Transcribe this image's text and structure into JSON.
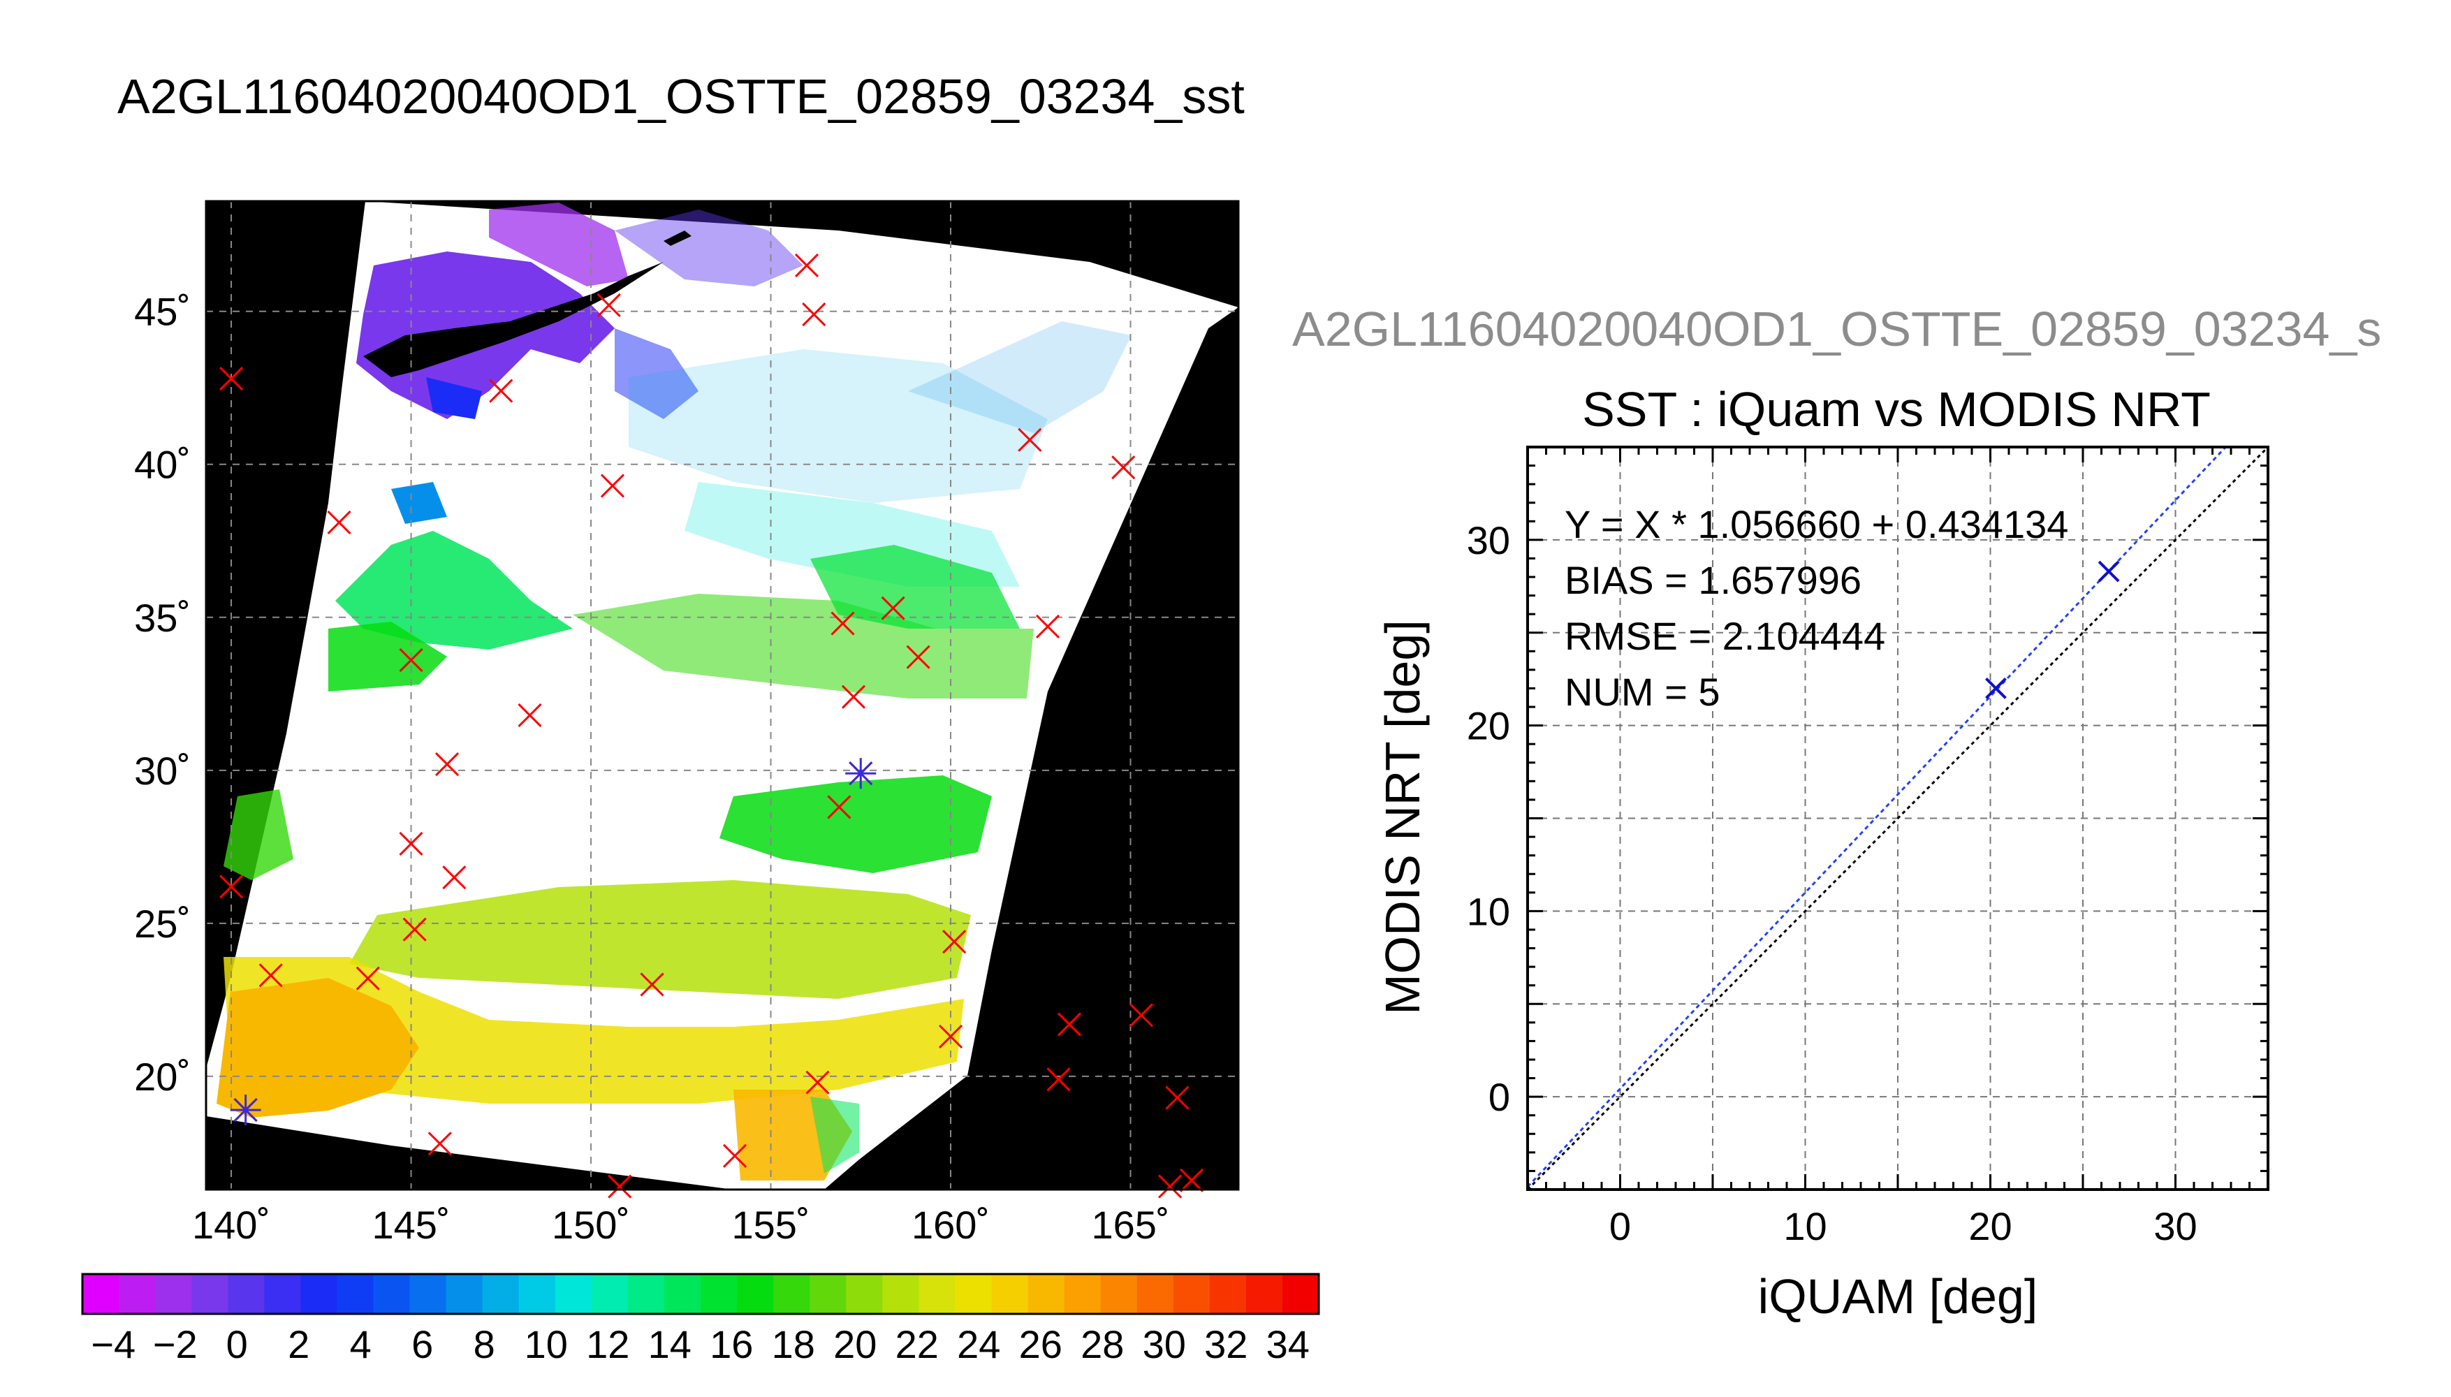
{
  "page": {
    "title": "A2GL11604020040OD1_OSTTE_02859_03234_sst"
  },
  "map": {
    "lon_labels": [
      "140˚",
      "145˚",
      "150˚",
      "155˚",
      "160˚",
      "165˚"
    ],
    "lat_labels": [
      "20˚",
      "25˚",
      "30˚",
      "35˚",
      "40˚",
      "45˚"
    ],
    "lon_values": [
      140,
      145,
      150,
      155,
      160,
      165
    ],
    "lat_values": [
      20,
      25,
      30,
      35,
      40,
      45
    ],
    "lon_range": [
      139.3,
      168.0
    ],
    "lat_range": [
      16.3,
      48.6
    ],
    "grid": true,
    "matchup_marker_color": "#ff0000",
    "used_marker_color": "#3b2bd6",
    "matchups": [
      [
        140.0,
        42.8
      ],
      [
        150.5,
        45.2
      ],
      [
        156.0,
        46.5
      ],
      [
        156.2,
        44.9
      ],
      [
        147.5,
        42.4
      ],
      [
        150.6,
        39.3
      ],
      [
        162.2,
        40.8
      ],
      [
        164.8,
        39.9
      ],
      [
        143.0,
        38.1
      ],
      [
        145.0,
        33.6
      ],
      [
        148.3,
        31.8
      ],
      [
        146.0,
        30.2
      ],
      [
        157.0,
        34.8
      ],
      [
        158.4,
        35.3
      ],
      [
        159.1,
        33.7
      ],
      [
        162.7,
        34.7
      ],
      [
        157.3,
        32.4
      ],
      [
        157.5,
        29.9
      ],
      [
        156.9,
        28.8
      ],
      [
        145.0,
        27.6
      ],
      [
        146.2,
        26.5
      ],
      [
        145.1,
        24.8
      ],
      [
        140.0,
        26.2
      ],
      [
        141.1,
        23.3
      ],
      [
        143.8,
        23.2
      ],
      [
        151.7,
        23.0
      ],
      [
        160.1,
        24.4
      ],
      [
        160.0,
        21.3
      ],
      [
        163.3,
        21.7
      ],
      [
        165.3,
        22.0
      ],
      [
        163.0,
        19.9
      ],
      [
        156.3,
        19.8
      ],
      [
        166.3,
        19.3
      ],
      [
        140.4,
        18.9
      ],
      [
        145.8,
        17.8
      ],
      [
        154.0,
        17.4
      ],
      [
        150.8,
        16.4
      ],
      [
        166.1,
        16.4
      ],
      [
        166.7,
        16.6
      ]
    ],
    "used_matchups": [
      [
        157.5,
        29.9
      ],
      [
        140.4,
        18.9
      ]
    ]
  },
  "colorbar": {
    "labels": [
      "−4",
      "−2",
      "0",
      "2",
      "4",
      "6",
      "8",
      "10",
      "12",
      "14",
      "16",
      "18",
      "20",
      "22",
      "24",
      "26",
      "28",
      "30",
      "32",
      "34"
    ],
    "min": -5,
    "max": 35,
    "colors": [
      "#e000ff",
      "#bd1df2",
      "#9d30ec",
      "#7a38ec",
      "#5a35ee",
      "#3a2ff2",
      "#1a2cf5",
      "#0f3df5",
      "#0a55f2",
      "#0870ee",
      "#058fea",
      "#03ade6",
      "#00cbe6",
      "#00e6d8",
      "#00ecb0",
      "#00ea85",
      "#00e65a",
      "#00e230",
      "#05dc10",
      "#35d80a",
      "#60d80a",
      "#8edc0a",
      "#b5e00a",
      "#d6e20a",
      "#ece000",
      "#f6cf00",
      "#f9b800",
      "#fba000",
      "#fc8500",
      "#fb6a00",
      "#fa4f00",
      "#f83400",
      "#f61a00",
      "#f20000"
    ]
  },
  "scatter_title_gray": "A2GL11604020040OD1_OSTTE_02859_03234_s",
  "scatter_title": "SST : iQuam vs MODIS NRT",
  "stats": {
    "fit": "Y = X * 1.056660 + 0.434134",
    "bias": "BIAS = 1.657996",
    "rmse": "RMSE = 2.104444",
    "num": "NUM = 5"
  },
  "chart_data": {
    "type": "scatter",
    "title": "SST : iQuam vs MODIS NRT",
    "xlabel": "iQUAM [deg]",
    "ylabel": "MODIS NRT [deg]",
    "xlim": [
      -5,
      35
    ],
    "ylim": [
      -5,
      35
    ],
    "xticks": [
      0,
      10,
      20,
      30
    ],
    "yticks": [
      0,
      10,
      20,
      30
    ],
    "xtick_labels": [
      "0",
      "10",
      "20",
      "30"
    ],
    "ytick_labels": [
      "0",
      "10",
      "20",
      "30"
    ],
    "grid": true,
    "points": [
      {
        "x": 20.3,
        "y": 22.0
      },
      {
        "x": 26.4,
        "y": 28.3
      }
    ],
    "fit": {
      "slope": 1.05666,
      "intercept": 0.434134
    },
    "one_to_one_line": true,
    "marker_color": "#1010d0",
    "fit_line_color": "#2040ff",
    "identity_line_color": "#000000"
  }
}
